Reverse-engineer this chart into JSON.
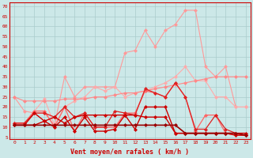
{
  "background_color": "#cce8e8",
  "grid_color": "#aacccc",
  "xlabel": "Vent moyen/en rafales ( km/h )",
  "xlabel_color": "#cc0000",
  "ylabel_ticks": [
    5,
    10,
    15,
    20,
    25,
    30,
    35,
    40,
    45,
    50,
    55,
    60,
    65,
    70
  ],
  "xlim": [
    -0.5,
    23.5
  ],
  "ylim": [
    4,
    72
  ],
  "x": [
    0,
    1,
    2,
    3,
    4,
    5,
    6,
    7,
    8,
    9,
    10,
    11,
    12,
    13,
    14,
    15,
    16,
    17,
    18,
    19,
    20,
    21,
    22,
    23
  ],
  "series": [
    {
      "color": "#ff9999",
      "lw": 0.8,
      "marker": "D",
      "ms": 2.0,
      "y": [
        25,
        18,
        17,
        17,
        11,
        35,
        25,
        30,
        30,
        30,
        30,
        47,
        48,
        58,
        50,
        58,
        61,
        68,
        68,
        40,
        35,
        40,
        20,
        20
      ]
    },
    {
      "color": "#ffaaaa",
      "lw": 0.8,
      "marker": "D",
      "ms": 2.0,
      "y": [
        12,
        12,
        18,
        24,
        11,
        20,
        23,
        25,
        30,
        28,
        30,
        25,
        27,
        28,
        30,
        32,
        35,
        40,
        33,
        33,
        25,
        25,
        20,
        20
      ]
    },
    {
      "color": "#ff8888",
      "lw": 0.8,
      "marker": "D",
      "ms": 2.0,
      "y": [
        25,
        23,
        23,
        23,
        23,
        24,
        24,
        24,
        25,
        25,
        26,
        27,
        27,
        28,
        29,
        30,
        31,
        32,
        33,
        34,
        35,
        35,
        35,
        35
      ]
    },
    {
      "color": "#ff6666",
      "lw": 0.9,
      "marker": "D",
      "ms": 2.0,
      "y": [
        12,
        12,
        18,
        18,
        10,
        20,
        8,
        17,
        10,
        10,
        10,
        17,
        17,
        28,
        27,
        25,
        32,
        25,
        8,
        16,
        16,
        7,
        6,
        6
      ]
    },
    {
      "color": "#dd2222",
      "lw": 0.9,
      "marker": "D",
      "ms": 2.0,
      "y": [
        12,
        12,
        17,
        17,
        15,
        20,
        15,
        17,
        10,
        10,
        18,
        17,
        16,
        29,
        27,
        25,
        32,
        25,
        9,
        9,
        16,
        9,
        7,
        6
      ]
    },
    {
      "color": "#cc0000",
      "lw": 1.0,
      "marker": "D",
      "ms": 2.0,
      "y": [
        11,
        11,
        17,
        13,
        10,
        15,
        8,
        15,
        8,
        8,
        9,
        16,
        9,
        20,
        20,
        20,
        7,
        7,
        7,
        7,
        7,
        7,
        6,
        6
      ]
    },
    {
      "color": "#cc0000",
      "lw": 1.0,
      "marker": "D",
      "ms": 2.0,
      "y": [
        11,
        11,
        11,
        13,
        15,
        12,
        15,
        16,
        16,
        16,
        16,
        16,
        16,
        15,
        15,
        15,
        7,
        7,
        7,
        7,
        7,
        7,
        7,
        7
      ]
    },
    {
      "color": "#990000",
      "lw": 1.2,
      "marker": "D",
      "ms": 2.0,
      "y": [
        11,
        11,
        11,
        11,
        11,
        11,
        11,
        11,
        11,
        11,
        11,
        11,
        11,
        11,
        11,
        11,
        11,
        7,
        7,
        7,
        7,
        7,
        7,
        6
      ]
    }
  ]
}
